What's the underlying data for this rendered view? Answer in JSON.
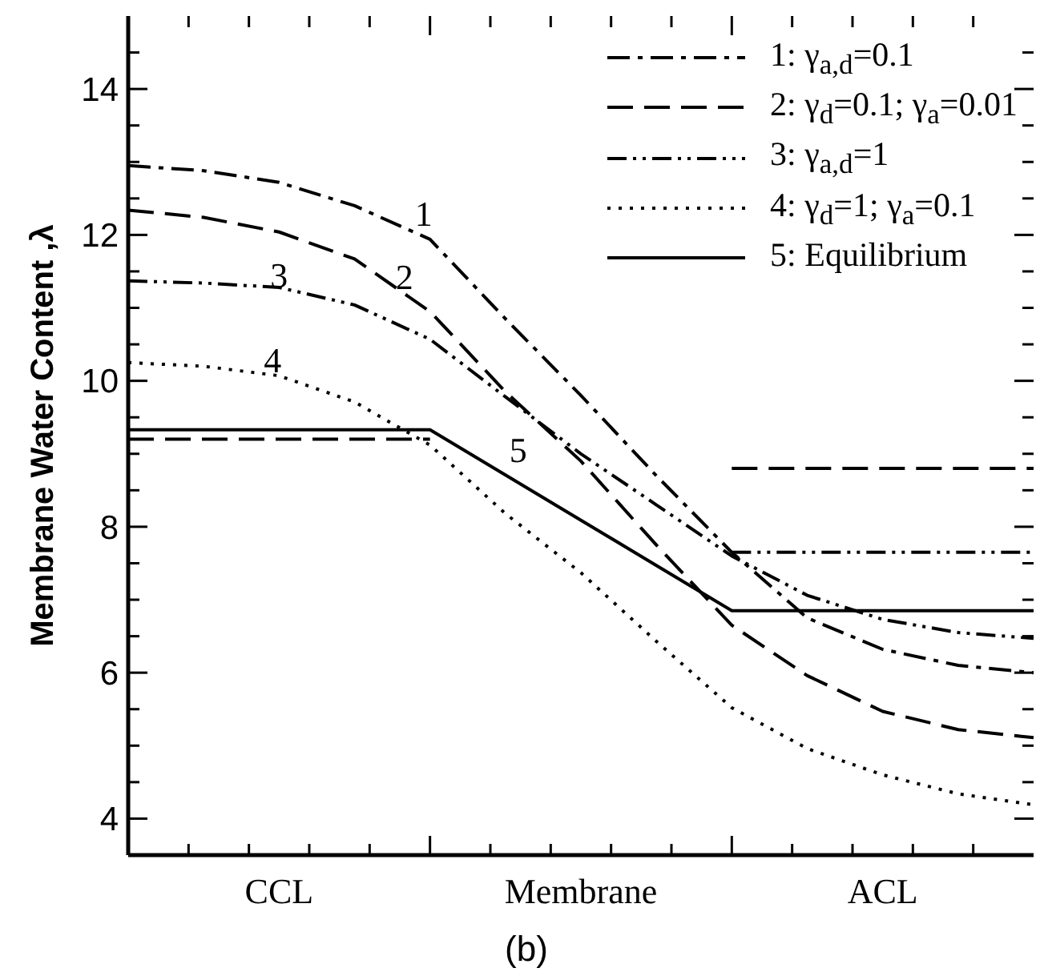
{
  "chart_data": {
    "type": "line",
    "title": "(b)",
    "ylabel": "Membrane Water Content ,λ",
    "categories": [
      null,
      null,
      "CCL",
      null,
      null,
      null,
      "Membrane",
      null,
      null,
      null,
      "ACL",
      null,
      null
    ],
    "ylim": [
      3.5,
      15
    ],
    "yticks": [
      4,
      {
        "value": 4.5,
        "label": null
      },
      {
        "value": 5,
        "label": null
      },
      {
        "value": 5.5,
        "label": null
      },
      6,
      {
        "value": 6.5,
        "label": null
      },
      {
        "value": 7,
        "label": null
      },
      {
        "value": 7.5,
        "label": null
      },
      8,
      {
        "value": 8.5,
        "label": null
      },
      {
        "value": 9,
        "label": null
      },
      {
        "value": 9.5,
        "label": null
      },
      10,
      {
        "value": 10.5,
        "label": null
      },
      {
        "value": 11,
        "label": null
      },
      {
        "value": 11.5,
        "label": null
      },
      12,
      {
        "value": 12.5,
        "label": null
      },
      {
        "value": 13,
        "label": null
      },
      {
        "value": 13.5,
        "label": null
      },
      14,
      {
        "value": 14.5,
        "label": null
      }
    ],
    "grid": false,
    "legend": "top right",
    "marker": "none",
    "series": [
      {
        "name": "1: γ$_{a,d}$=0.1",
        "color": "#000000",
        "line_style": "dashdot",
        "values": [
          12.95,
          12.88,
          12.72,
          12.4,
          11.94,
          10.85,
          9.8,
          8.7,
          7.65,
          6.75,
          6.32,
          6.1,
          6.0
        ]
      },
      {
        "name": "2: γ$_{d}$=0.1; γ$_{a}$=0.01",
        "color": "#000000",
        "line_style": "dashed",
        "values": [
          12.34,
          12.24,
          12.04,
          11.67,
          10.95,
          9.85,
          8.9,
          7.75,
          6.65,
          5.96,
          5.47,
          5.22,
          5.11
        ]
      },
      {
        "name": "3: γ$_{a,d}$=1",
        "color": "#000000",
        "line_style": "dashdotdot",
        "values": [
          11.37,
          11.34,
          11.28,
          11.04,
          10.57,
          9.78,
          9.0,
          8.3,
          7.6,
          7.06,
          6.73,
          6.55,
          6.47
        ]
      },
      {
        "name": "4: γ$_{d}$=1; γ$_{a}$=0.1",
        "color": "#000000",
        "line_style": "dotted",
        "values": [
          10.25,
          10.2,
          10.07,
          9.71,
          9.12,
          8.18,
          7.37,
          6.43,
          5.52,
          4.96,
          4.6,
          4.34,
          4.19
        ]
      },
      {
        "name": "5: Equilibrium",
        "color": "#000000",
        "line_style": "solid",
        "values": [
          9.33,
          9.33,
          9.33,
          9.33,
          9.33,
          8.71,
          8.09,
          7.47,
          6.85,
          6.85,
          6.85,
          6.85,
          6.85
        ]
      },
      {
        "color": "#000000",
        "line_style": "dashed",
        "values": [
          9.2,
          9.2,
          9.2,
          9.2,
          9.2,
          null,
          null,
          null,
          8.8,
          8.8,
          8.8,
          8.8,
          8.8
        ]
      },
      {
        "color": "#000000",
        "line_style": "dashdotdot",
        "values": [
          null,
          null,
          null,
          null,
          null,
          null,
          null,
          null,
          7.65,
          7.65,
          7.65,
          7.65,
          7.65
        ]
      }
    ],
    "annotations": [
      "1",
      "2",
      "3",
      "4",
      "5"
    ]
  }
}
